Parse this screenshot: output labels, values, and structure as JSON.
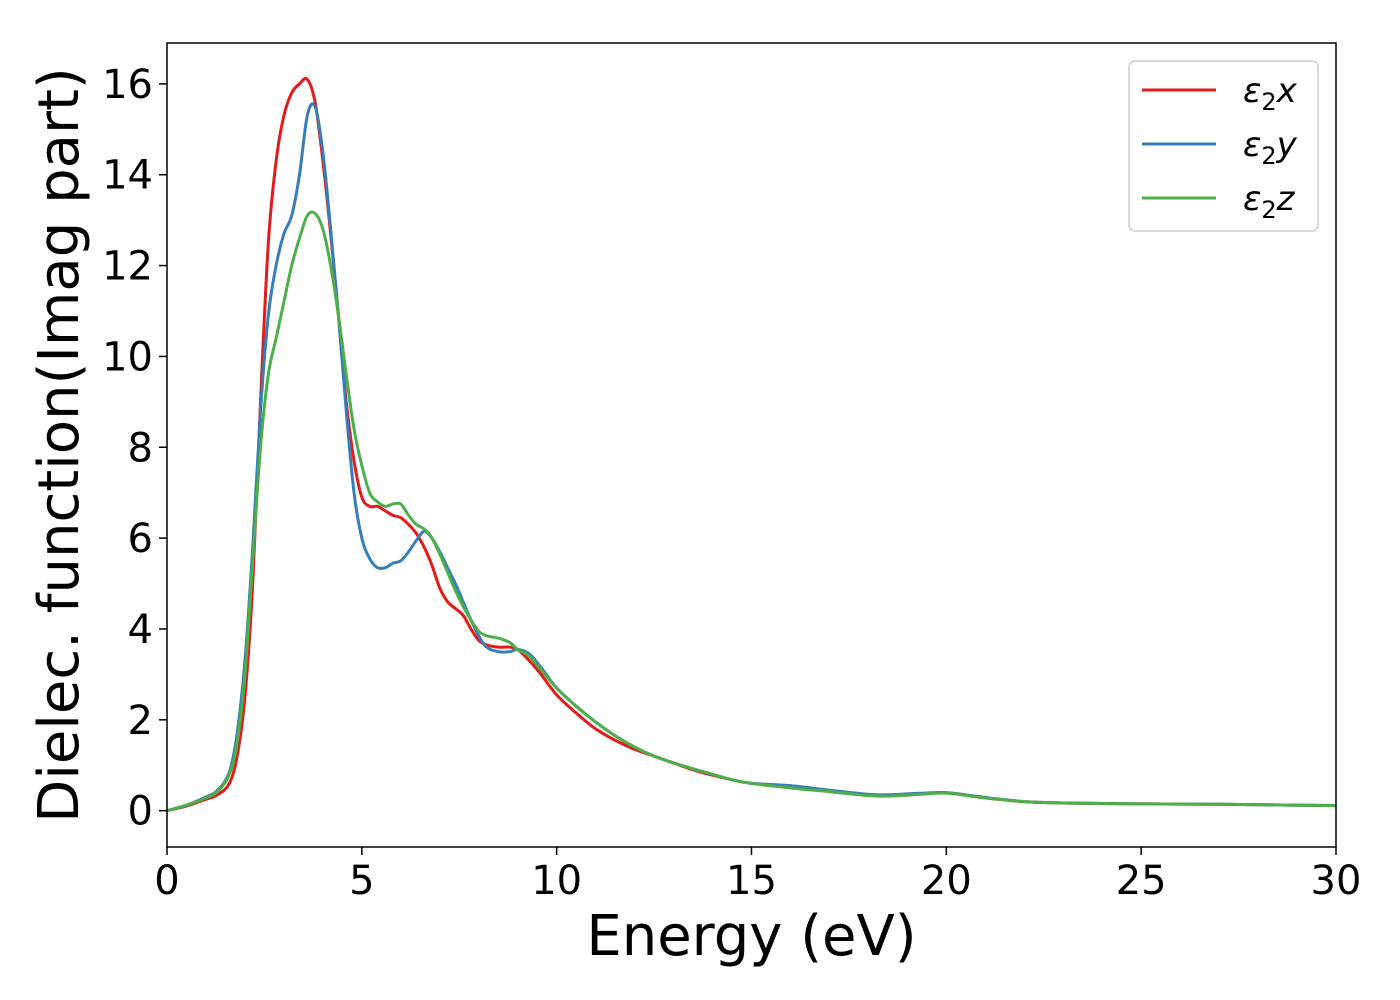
{
  "chart_data": {
    "type": "line",
    "title": "",
    "xlabel": "Energy (eV)",
    "ylabel": "Dielec. function(Imag part)",
    "xlim": [
      0,
      30
    ],
    "ylim": [
      -0.8,
      16.9
    ],
    "xticks": [
      0,
      5,
      10,
      15,
      20,
      25,
      30
    ],
    "yticks": [
      0,
      2,
      4,
      6,
      8,
      10,
      12,
      14,
      16
    ],
    "grid": false,
    "legend_position": "top-right",
    "series": [
      {
        "name": "ε2x",
        "legend_base": "ε",
        "legend_sub": "2",
        "legend_tail": "x",
        "color": "#e41a1c",
        "x": [
          0,
          0.5,
          1.0,
          1.3,
          1.6,
          1.8,
          2.0,
          2.2,
          2.4,
          2.6,
          2.8,
          3.0,
          3.2,
          3.4,
          3.6,
          3.8,
          4.0,
          4.2,
          4.4,
          4.6,
          4.8,
          5.0,
          5.2,
          5.4,
          5.6,
          5.8,
          6.0,
          6.2,
          6.4,
          6.6,
          6.8,
          7.0,
          7.2,
          7.4,
          7.6,
          7.8,
          8.0,
          8.2,
          8.5,
          8.8,
          9.0,
          9.3,
          9.6,
          10.0,
          10.5,
          11.0,
          11.5,
          12.0,
          12.5,
          13.0,
          13.5,
          14.0,
          14.5,
          15.0,
          16.0,
          17.0,
          18.0,
          18.5,
          19.0,
          19.5,
          19.9,
          20.3,
          21.0,
          22.0,
          23.0,
          25.0,
          27.0,
          30.0
        ],
        "y": [
          0.0,
          0.1,
          0.25,
          0.35,
          0.6,
          1.2,
          2.5,
          5.0,
          9.0,
          12.5,
          14.3,
          15.3,
          15.8,
          16.0,
          16.1,
          15.6,
          14.3,
          12.7,
          10.9,
          9.0,
          7.7,
          6.9,
          6.7,
          6.7,
          6.6,
          6.5,
          6.45,
          6.3,
          6.1,
          5.8,
          5.4,
          4.9,
          4.6,
          4.45,
          4.3,
          4.0,
          3.75,
          3.65,
          3.6,
          3.6,
          3.55,
          3.3,
          3.0,
          2.55,
          2.15,
          1.8,
          1.55,
          1.35,
          1.2,
          1.05,
          0.9,
          0.78,
          0.68,
          0.6,
          0.52,
          0.42,
          0.35,
          0.34,
          0.36,
          0.38,
          0.4,
          0.37,
          0.28,
          0.2,
          0.17,
          0.15,
          0.14,
          0.11
        ]
      },
      {
        "name": "ε2y",
        "legend_base": "ε",
        "legend_sub": "2",
        "legend_tail": "y",
        "color": "#377eb8",
        "x": [
          0,
          0.5,
          1.0,
          1.3,
          1.6,
          1.8,
          2.0,
          2.2,
          2.4,
          2.6,
          2.8,
          3.0,
          3.2,
          3.4,
          3.6,
          3.8,
          4.0,
          4.2,
          4.4,
          4.6,
          4.8,
          5.0,
          5.2,
          5.4,
          5.6,
          5.8,
          6.0,
          6.2,
          6.4,
          6.6,
          6.8,
          7.0,
          7.2,
          7.4,
          7.6,
          7.8,
          8.0,
          8.2,
          8.5,
          8.8,
          9.0,
          9.3,
          9.6,
          10.0,
          10.5,
          11.0,
          11.5,
          12.0,
          12.5,
          13.0,
          13.5,
          14.0,
          14.5,
          15.0,
          16.0,
          17.0,
          18.0,
          18.5,
          19.0,
          19.5,
          19.9,
          20.3,
          21.0,
          22.0,
          23.0,
          25.0,
          27.0,
          30.0
        ],
        "y": [
          0.0,
          0.12,
          0.3,
          0.45,
          0.85,
          1.7,
          3.3,
          5.8,
          8.8,
          10.9,
          12.0,
          12.7,
          13.1,
          14.0,
          15.3,
          15.5,
          14.5,
          12.8,
          10.9,
          8.8,
          7.0,
          6.0,
          5.55,
          5.35,
          5.35,
          5.45,
          5.5,
          5.7,
          5.95,
          6.15,
          6.0,
          5.7,
          5.35,
          5.0,
          4.6,
          4.2,
          3.85,
          3.6,
          3.5,
          3.5,
          3.55,
          3.45,
          3.15,
          2.7,
          2.3,
          1.95,
          1.65,
          1.4,
          1.2,
          1.05,
          0.92,
          0.8,
          0.68,
          0.6,
          0.55,
          0.45,
          0.36,
          0.35,
          0.37,
          0.39,
          0.4,
          0.37,
          0.29,
          0.2,
          0.17,
          0.15,
          0.14,
          0.11
        ]
      },
      {
        "name": "ε2z",
        "legend_base": "ε",
        "legend_sub": "2",
        "legend_tail": "z",
        "color": "#4daf4a",
        "x": [
          0,
          0.5,
          1.0,
          1.3,
          1.6,
          1.8,
          2.0,
          2.2,
          2.4,
          2.6,
          2.8,
          3.0,
          3.2,
          3.4,
          3.6,
          3.8,
          4.0,
          4.2,
          4.4,
          4.6,
          4.8,
          5.0,
          5.2,
          5.4,
          5.6,
          5.8,
          6.0,
          6.2,
          6.4,
          6.6,
          6.8,
          7.0,
          7.2,
          7.4,
          7.6,
          7.8,
          8.0,
          8.2,
          8.5,
          8.8,
          9.0,
          9.3,
          9.6,
          10.0,
          10.5,
          11.0,
          11.5,
          12.0,
          12.5,
          13.0,
          13.5,
          14.0,
          14.5,
          15.0,
          16.0,
          17.0,
          18.0,
          18.5,
          19.0,
          19.5,
          19.9,
          20.3,
          21.0,
          22.0,
          23.0,
          25.0,
          27.0,
          30.0
        ],
        "y": [
          0.0,
          0.12,
          0.28,
          0.42,
          0.8,
          1.5,
          3.0,
          5.5,
          8.0,
          9.6,
          10.4,
          11.2,
          12.0,
          12.6,
          13.1,
          13.15,
          12.8,
          12.0,
          10.9,
          9.6,
          8.4,
          7.6,
          7.0,
          6.8,
          6.7,
          6.75,
          6.75,
          6.5,
          6.3,
          6.2,
          6.0,
          5.65,
          5.25,
          4.85,
          4.5,
          4.2,
          3.95,
          3.85,
          3.8,
          3.7,
          3.55,
          3.4,
          3.1,
          2.7,
          2.3,
          1.95,
          1.65,
          1.4,
          1.2,
          1.05,
          0.92,
          0.8,
          0.68,
          0.6,
          0.5,
          0.42,
          0.33,
          0.32,
          0.34,
          0.37,
          0.39,
          0.36,
          0.28,
          0.2,
          0.17,
          0.15,
          0.14,
          0.11
        ]
      }
    ]
  }
}
